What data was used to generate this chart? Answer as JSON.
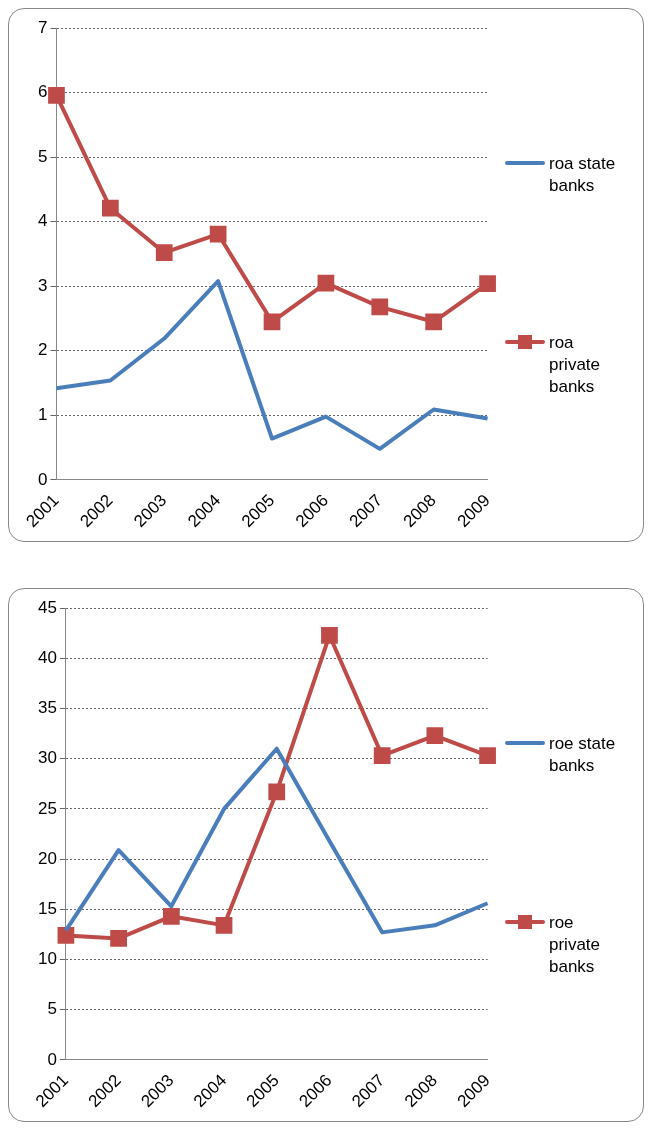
{
  "chart_data": [
    {
      "type": "line",
      "categories": [
        "2001",
        "2002",
        "2003",
        "2004",
        "2005",
        "2006",
        "2007",
        "2008",
        "2009"
      ],
      "ylim": [
        0,
        7
      ],
      "yticks": [
        0,
        1,
        2,
        3,
        4,
        5,
        6,
        7
      ],
      "grid": "y",
      "legend": "right",
      "series": [
        {
          "name": "roa state banks",
          "color": "#4a7ebb",
          "marker": "none",
          "values": [
            1.42,
            1.54,
            2.19,
            3.08,
            0.64,
            0.98,
            0.48,
            1.09,
            0.95
          ]
        },
        {
          "name": "roa private banks",
          "color": "#be4b48",
          "marker": "square",
          "values": [
            5.96,
            4.21,
            3.52,
            3.81,
            2.45,
            3.05,
            2.68,
            2.45,
            3.04
          ]
        }
      ]
    },
    {
      "type": "line",
      "categories": [
        "2001",
        "2002",
        "2003",
        "2004",
        "2005",
        "2006",
        "2007",
        "2008",
        "2009"
      ],
      "ylim": [
        0,
        45
      ],
      "yticks": [
        0,
        5,
        10,
        15,
        20,
        25,
        30,
        35,
        40,
        45
      ],
      "grid": "y",
      "legend": "right",
      "series": [
        {
          "name": "roe state banks",
          "color": "#4a7ebb",
          "marker": "none",
          "values": [
            12.9,
            20.9,
            15.3,
            25.0,
            31.0,
            21.8,
            12.7,
            13.4,
            15.6
          ]
        },
        {
          "name": "roe private banks",
          "color": "#be4b48",
          "marker": "square",
          "values": [
            12.4,
            12.1,
            14.3,
            13.4,
            26.7,
            42.3,
            30.3,
            32.3,
            30.3
          ]
        }
      ]
    }
  ]
}
